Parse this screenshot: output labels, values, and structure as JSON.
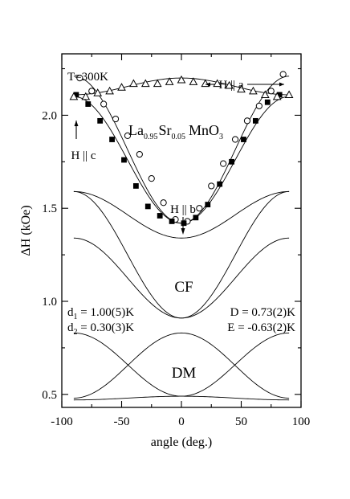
{
  "chart_data": {
    "type": "scatter",
    "xlabel": "angle (deg.)",
    "ylabel": "ΔH (kOe)",
    "xlim": [
      -100,
      100
    ],
    "ylim": [
      0.43,
      2.33
    ],
    "x_ticks": [
      -100,
      -50,
      0,
      50,
      100
    ],
    "x_tick_labels": [
      "-100",
      "-50",
      "0",
      "50",
      "100"
    ],
    "y_ticks": [
      0.5,
      1.0,
      1.5,
      2.0
    ],
    "y_tick_labels": [
      "0.5",
      "1.0",
      "1.5",
      "2.0"
    ],
    "grid": false,
    "annotations": {
      "temperature": "T=300K",
      "compound": {
        "a": "La",
        "a_sub": "0.95",
        "b": "Sr",
        "b_sub": "0.05",
        "c": "MnO",
        "c_sub": "3"
      },
      "h_a": "H || a",
      "h_b": "H || b",
      "h_c": "H || c",
      "cf": "CF",
      "dm": "DM",
      "d1": {
        "main": "d",
        "sub": "1",
        "value": " = 1.00(5)K"
      },
      "d2": {
        "main": "d",
        "sub": "2",
        "value": " = 0.30(3)K"
      },
      "D": "D = 0.73(2)K",
      "E": "E = -0.63(2)K"
    },
    "series": [
      {
        "marker": "open-circle",
        "x": [
          -85,
          -75,
          -65,
          -55,
          -45,
          -35,
          -25,
          -15,
          -5,
          5,
          15,
          25,
          35,
          45,
          55,
          65,
          75,
          85
        ],
        "y": [
          2.2,
          2.13,
          2.06,
          1.98,
          1.89,
          1.79,
          1.66,
          1.53,
          1.44,
          1.43,
          1.5,
          1.62,
          1.74,
          1.87,
          1.97,
          2.05,
          2.13,
          2.22
        ]
      },
      {
        "marker": "filled-square",
        "x": [
          -88,
          -78,
          -68,
          -58,
          -48,
          -38,
          -28,
          -18,
          -8,
          2,
          12,
          22,
          32,
          42,
          52,
          62,
          72,
          82
        ],
        "y": [
          2.11,
          2.06,
          1.97,
          1.87,
          1.76,
          1.62,
          1.51,
          1.46,
          1.43,
          1.42,
          1.45,
          1.52,
          1.63,
          1.75,
          1.87,
          1.97,
          2.07,
          2.11
        ]
      },
      {
        "marker": "open-triangle",
        "x": [
          -90,
          -80,
          -70,
          -60,
          -50,
          -40,
          -30,
          -20,
          -10,
          0,
          10,
          20,
          30,
          40,
          50,
          60,
          70,
          80,
          90
        ],
        "y": [
          2.1,
          2.1,
          2.12,
          2.13,
          2.15,
          2.17,
          2.17,
          2.17,
          2.18,
          2.19,
          2.18,
          2.17,
          2.17,
          2.16,
          2.14,
          2.13,
          2.11,
          2.1,
          2.11
        ]
      }
    ],
    "model_curves": [
      {
        "form": "cos2",
        "ends": 2.21,
        "center": 1.42,
        "group": "fit-circle"
      },
      {
        "form": "cos2",
        "ends": 2.1,
        "center": 1.42,
        "group": "fit-square"
      },
      {
        "form": "cos2",
        "ends": 2.11,
        "center": 2.2,
        "group": "fit-triangle"
      },
      {
        "form": "cos2",
        "ends": 1.59,
        "center": 1.34,
        "group": "CF"
      },
      {
        "form": "cos2",
        "ends": 1.34,
        "center": 0.91,
        "group": "CF"
      },
      {
        "form": "cos2",
        "ends": 1.59,
        "center": 0.91,
        "group": "CF"
      },
      {
        "form": "cos2",
        "ends": 0.83,
        "center": 0.49,
        "group": "DM"
      },
      {
        "form": "cos2",
        "ends": 0.48,
        "center": 0.83,
        "group": "DM"
      },
      {
        "form": "cos2",
        "ends": 0.47,
        "center": 0.49,
        "group": "DM"
      }
    ]
  }
}
